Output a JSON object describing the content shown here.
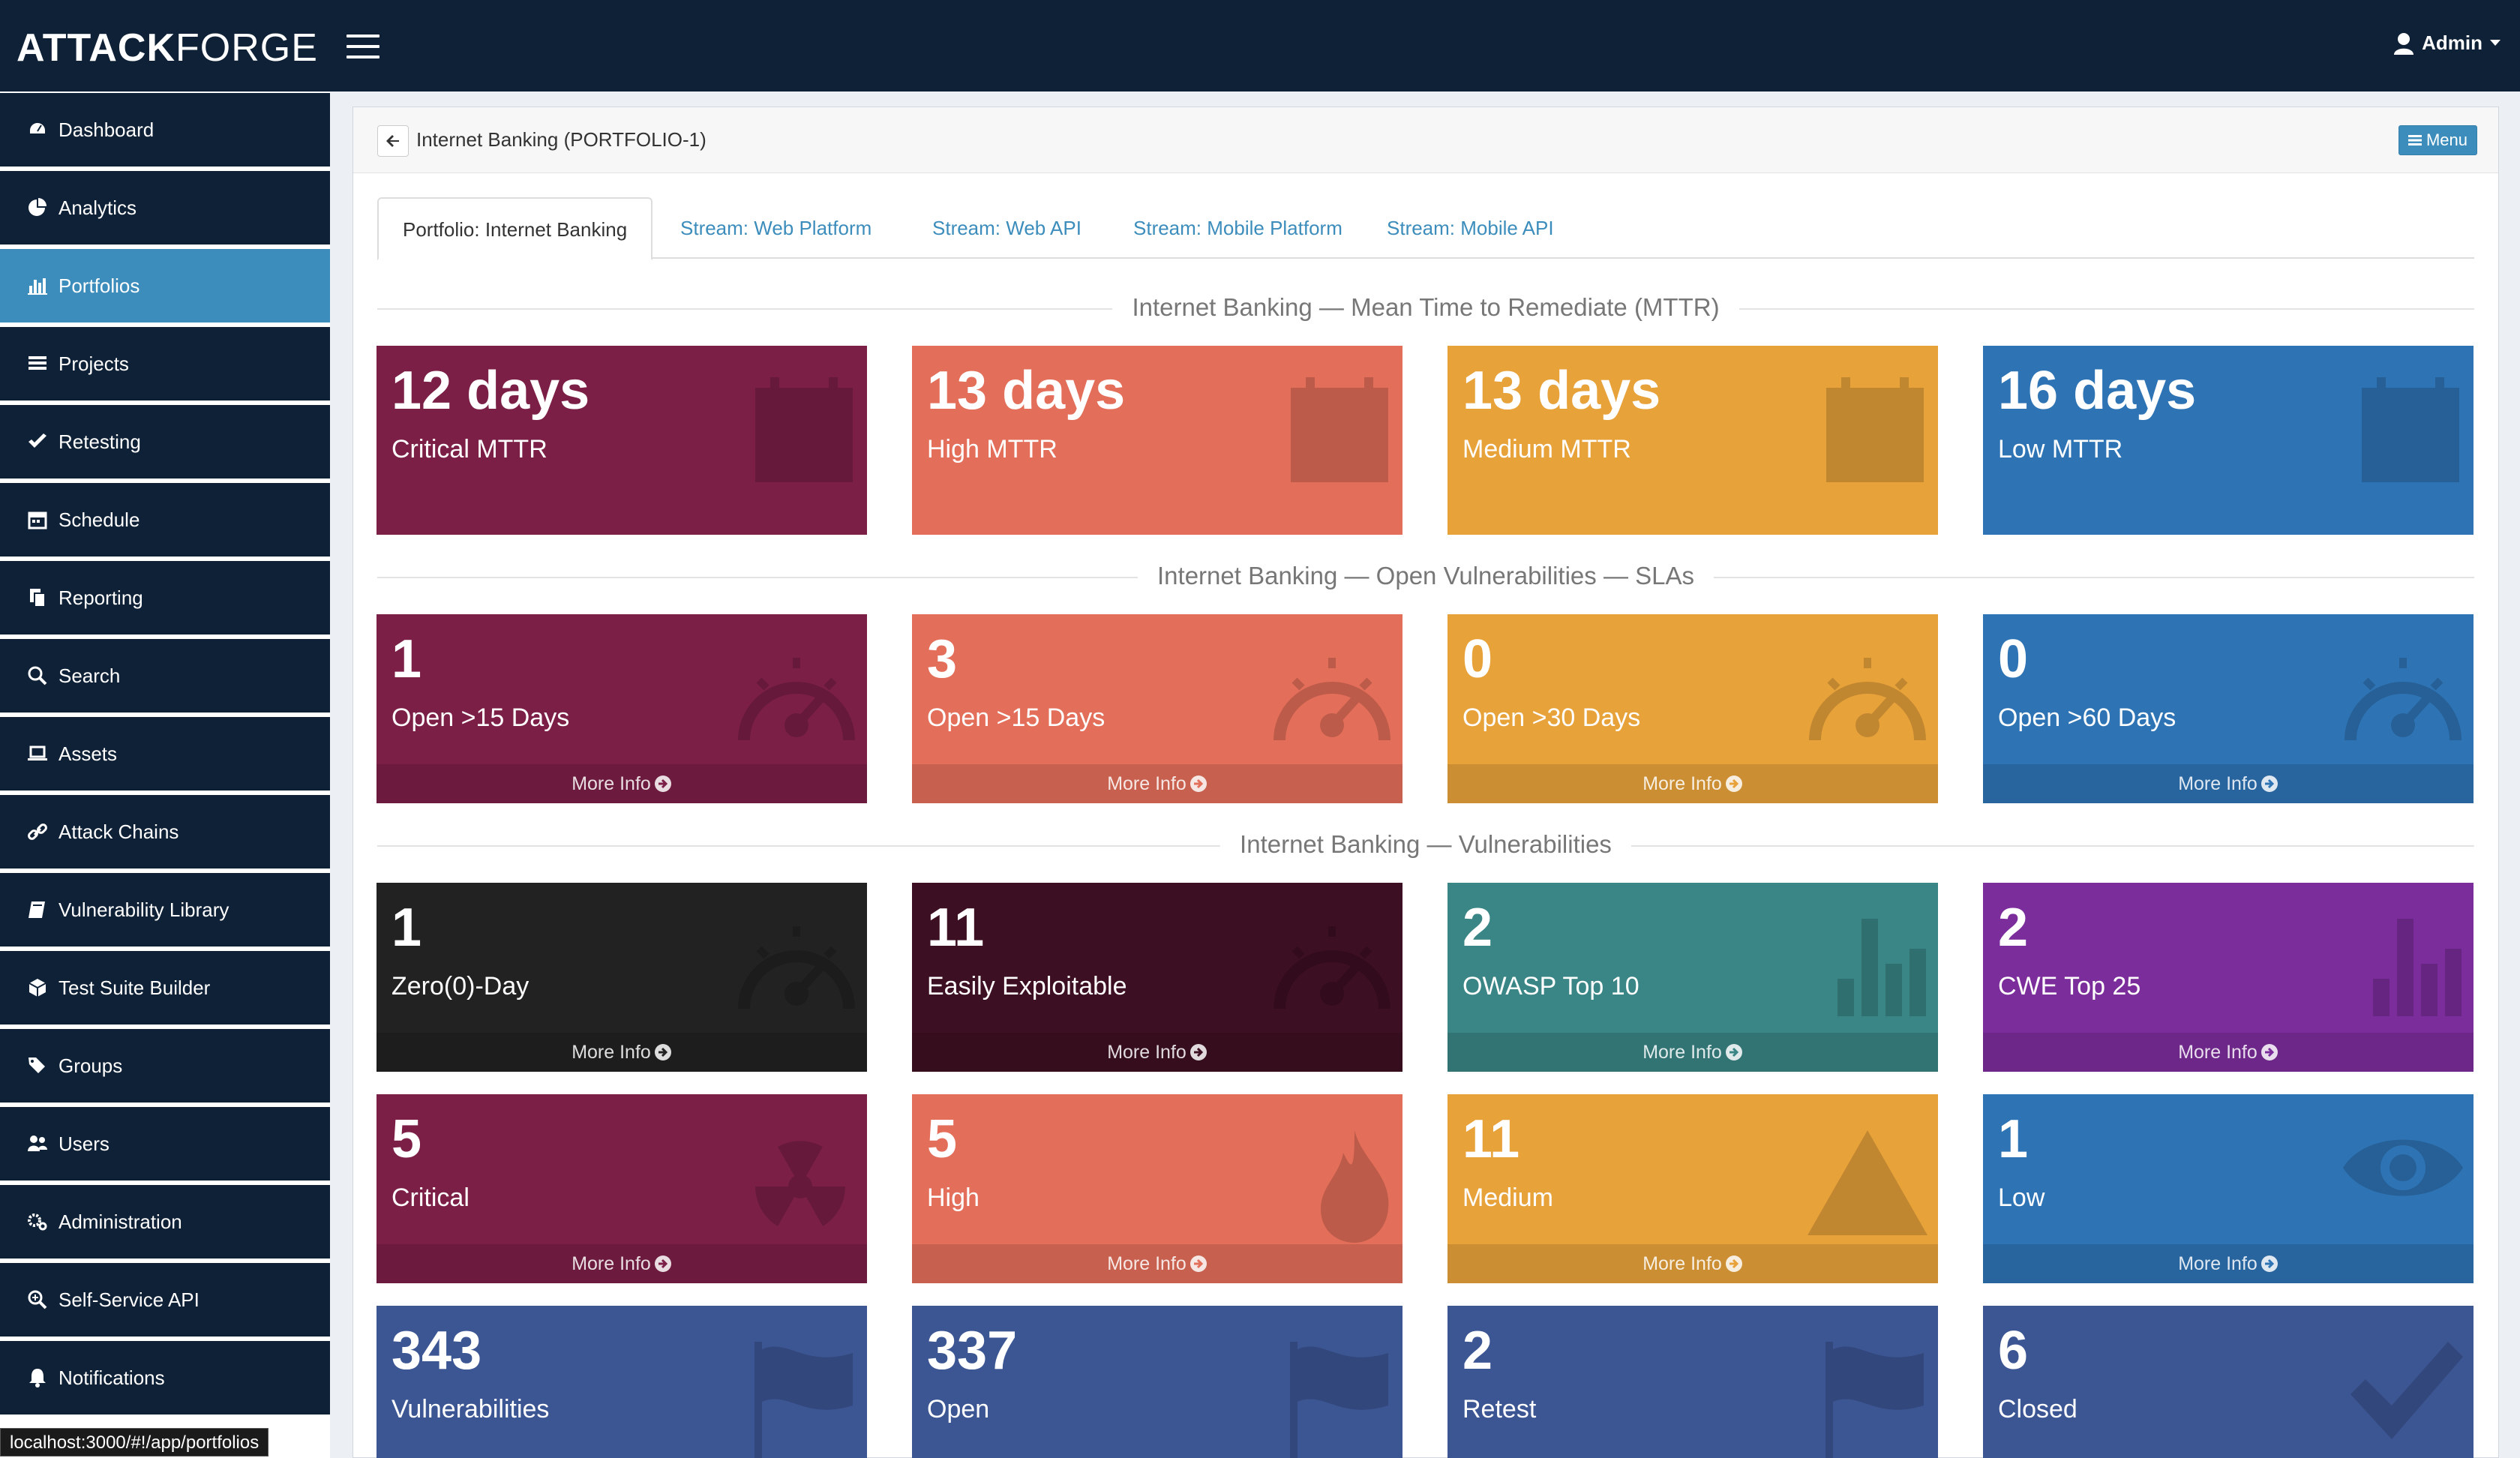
{
  "app": {
    "logo_bold": "ATTACK",
    "logo_light": "FORGE",
    "user_label": "Admin"
  },
  "sidebar": {
    "items": [
      {
        "label": "Dashboard",
        "icon": "dashboard-icon"
      },
      {
        "label": "Analytics",
        "icon": "pie-chart-icon"
      },
      {
        "label": "Portfolios",
        "icon": "bar-chart-icon",
        "active": true
      },
      {
        "label": "Projects",
        "icon": "list-icon"
      },
      {
        "label": "Retesting",
        "icon": "check-icon"
      },
      {
        "label": "Schedule",
        "icon": "calendar-icon"
      },
      {
        "label": "Reporting",
        "icon": "copy-icon"
      },
      {
        "label": "Search",
        "icon": "search-icon"
      },
      {
        "label": "Assets",
        "icon": "laptop-icon"
      },
      {
        "label": "Attack Chains",
        "icon": "link-icon"
      },
      {
        "label": "Vulnerability Library",
        "icon": "book-icon"
      },
      {
        "label": "Test Suite Builder",
        "icon": "cube-icon"
      },
      {
        "label": "Groups",
        "icon": "tags-icon"
      },
      {
        "label": "Users",
        "icon": "users-icon"
      },
      {
        "label": "Administration",
        "icon": "cogs-icon"
      },
      {
        "label": "Self-Service API",
        "icon": "search-plus-icon"
      },
      {
        "label": "Notifications",
        "icon": "bell-icon"
      }
    ],
    "status_url": "localhost:3000/#!/app/portfolios"
  },
  "header": {
    "breadcrumb": "Internet Banking (PORTFOLIO-1)",
    "menu_label": "Menu"
  },
  "tabs": [
    {
      "label": "Portfolio: Internet Banking",
      "active": true
    },
    {
      "label": "Stream: Web Platform"
    },
    {
      "label": "Stream: Web API"
    },
    {
      "label": "Stream: Mobile Platform"
    },
    {
      "label": "Stream: Mobile API"
    }
  ],
  "sections": {
    "mttr_title": "Internet Banking — Mean Time to Remediate (MTTR)",
    "sla_title": "Internet Banking — Open Vulnerabilities — SLAs",
    "vuln_title": "Internet Banking — Vulnerabilities"
  },
  "more_info_label": "More Info",
  "colors": {
    "critical": "#7b1f47",
    "high": "#e36e59",
    "medium": "#e8a23a",
    "low": "#2e74b5",
    "black": "#222222",
    "dark_maroon": "#3d0f22",
    "teal": "#3a8585",
    "purple": "#7b2d9b",
    "slate": "#3c5694"
  },
  "mttr": [
    {
      "value": "12 days",
      "label": "Critical MTTR",
      "color": "critical",
      "icon": "calendar-icon"
    },
    {
      "value": "13 days",
      "label": "High MTTR",
      "color": "high",
      "icon": "calendar-icon"
    },
    {
      "value": "13 days",
      "label": "Medium MTTR",
      "color": "medium",
      "icon": "calendar-icon"
    },
    {
      "value": "16 days",
      "label": "Low MTTR",
      "color": "low",
      "icon": "calendar-icon"
    }
  ],
  "sla": [
    {
      "value": "1",
      "label": "Open >15 Days",
      "color": "critical",
      "icon": "speedometer-icon"
    },
    {
      "value": "3",
      "label": "Open >15 Days",
      "color": "high",
      "icon": "speedometer-icon"
    },
    {
      "value": "0",
      "label": "Open >30 Days",
      "color": "medium",
      "icon": "speedometer-icon"
    },
    {
      "value": "0",
      "label": "Open >60 Days",
      "color": "low",
      "icon": "speedometer-icon"
    }
  ],
  "vulns_row1": [
    {
      "value": "1",
      "label": "Zero(0)-Day",
      "color": "black",
      "icon": "speedometer-icon"
    },
    {
      "value": "11",
      "label": "Easily Exploitable",
      "color": "dark_maroon",
      "icon": "speedometer-icon"
    },
    {
      "value": "2",
      "label": "OWASP Top 10",
      "color": "teal",
      "icon": "bar-chart-icon"
    },
    {
      "value": "2",
      "label": "CWE Top 25",
      "color": "purple",
      "icon": "bar-chart-icon"
    }
  ],
  "vulns_row2": [
    {
      "value": "5",
      "label": "Critical",
      "color": "critical",
      "icon": "radiation-icon"
    },
    {
      "value": "5",
      "label": "High",
      "color": "high",
      "icon": "flame-icon"
    },
    {
      "value": "11",
      "label": "Medium",
      "color": "medium",
      "icon": "warning-icon"
    },
    {
      "value": "1",
      "label": "Low",
      "color": "low",
      "icon": "eye-icon"
    }
  ],
  "vulns_row3": [
    {
      "value": "343",
      "label": "Vulnerabilities",
      "color": "slate",
      "icon": "flag-icon"
    },
    {
      "value": "337",
      "label": "Open",
      "color": "slate",
      "icon": "flag-icon"
    },
    {
      "value": "2",
      "label": "Retest",
      "color": "slate",
      "icon": "flag-icon"
    },
    {
      "value": "6",
      "label": "Closed",
      "color": "slate",
      "icon": "checkmark-icon"
    }
  ]
}
